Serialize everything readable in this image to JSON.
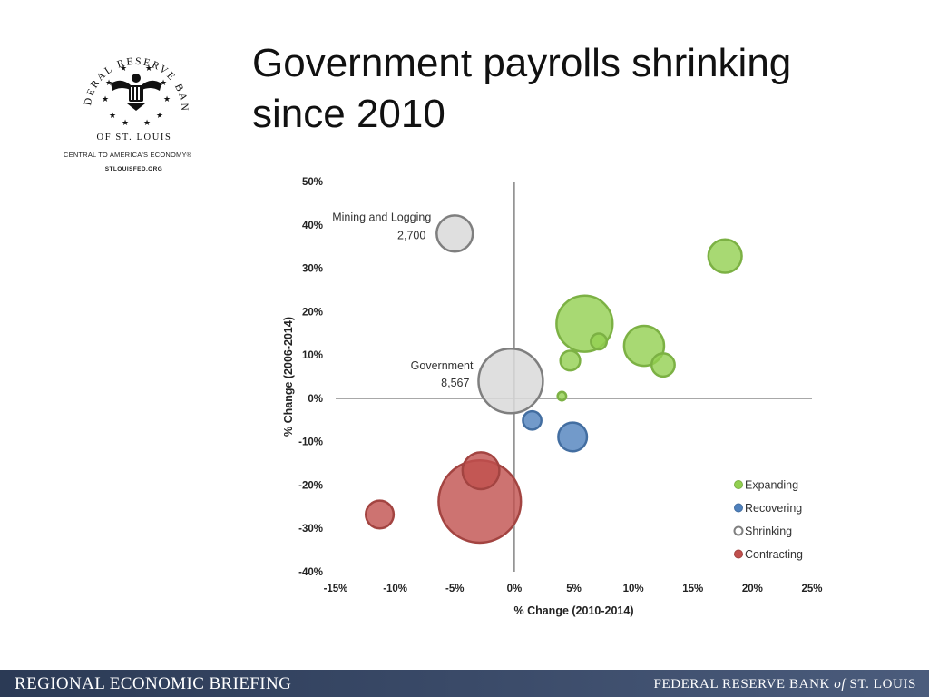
{
  "logo": {
    "arc_text": "FEDERAL RESERVE BANK",
    "bottom_text": "OF ST. LOUIS",
    "tagline": "CENTRAL TO AMERICA'S ECONOMY®",
    "url": "STLOUISFED.ORG"
  },
  "title": {
    "line1": "Government payrolls shrinking",
    "line2": "since 2010"
  },
  "colors": {
    "Expanding": "#92d050",
    "Recovering": "#4f81bd",
    "Shrinking": "#d9d9d9",
    "Contracting": "#c0504d"
  },
  "chart_data": {
    "type": "scatter",
    "title": "",
    "xlabel": "% Change  (2010-2014)",
    "ylabel": "% Change  (2006-2014)",
    "xlim": [
      -15,
      25
    ],
    "ylim": [
      -40,
      50
    ],
    "x_ticks": [
      "-15%",
      "-10%",
      "-5%",
      "0%",
      "5%",
      "10%",
      "15%",
      "20%",
      "25%"
    ],
    "y_ticks": [
      "50%",
      "40%",
      "30%",
      "20%",
      "10%",
      "0%",
      "-10%",
      "-20%",
      "-30%",
      "-40%"
    ],
    "legend_position": "bottom-right",
    "series": [
      {
        "name": "Expanding",
        "points": [
          {
            "x": 17.7,
            "y": 32.8,
            "size": 2300
          },
          {
            "x": 5.9,
            "y": 17.2,
            "size": 6500
          },
          {
            "x": 10.9,
            "y": 12.1,
            "size": 3300
          },
          {
            "x": 7.1,
            "y": 13.1,
            "size": 520
          },
          {
            "x": 4.7,
            "y": 8.7,
            "size": 800
          },
          {
            "x": 12.5,
            "y": 7.7,
            "size": 1100
          },
          {
            "x": 4.0,
            "y": 0.5,
            "size": 150
          }
        ]
      },
      {
        "name": "Recovering",
        "points": [
          {
            "x": 1.5,
            "y": -5.1,
            "size": 700
          },
          {
            "x": 4.9,
            "y": -8.9,
            "size": 1700
          }
        ]
      },
      {
        "name": "Shrinking",
        "points": [
          {
            "x": -5.0,
            "y": 38.0,
            "size": 2700
          },
          {
            "x": -0.3,
            "y": 4.0,
            "size": 8567
          }
        ]
      },
      {
        "name": "Contracting",
        "points": [
          {
            "x": -2.8,
            "y": -16.7,
            "size": 2800
          },
          {
            "x": -2.9,
            "y": -23.8,
            "size": 14000
          },
          {
            "x": -11.3,
            "y": -26.8,
            "size": 1600
          }
        ]
      }
    ],
    "annotations": [
      {
        "label": "Mining and Logging",
        "value": "2,700"
      },
      {
        "label": "Government",
        "value": "8,567"
      }
    ]
  },
  "footer": {
    "left": "REGIONAL ECONOMIC BRIEFING",
    "right_pre": "FEDERAL RESERVE BANK",
    "right_of": "of",
    "right_post": "ST. LOUIS"
  }
}
